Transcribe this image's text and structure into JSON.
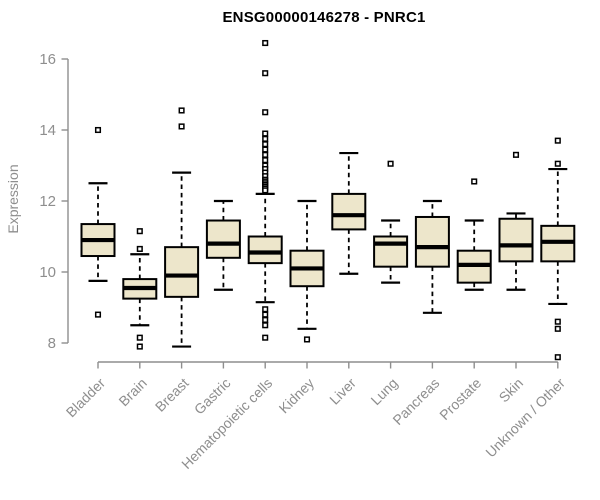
{
  "chart_data": {
    "type": "boxplot",
    "title": "ENSG00000146278 - PNRC1",
    "ylabel": "Expression",
    "xlabel": "",
    "yticks": [
      8,
      10,
      12,
      14,
      16
    ],
    "ylim": [
      7.4,
      16.6
    ],
    "grid": false,
    "legend": "none",
    "box_fill": "#EDE6CB",
    "box_stroke": "#000000",
    "median_color": "#000000",
    "whisker_color": "#000000",
    "axis_color": "#8E8E8E",
    "title_color": "#000000",
    "background": "#FFFFFF",
    "categories": [
      "Bladder",
      "Brain",
      "Breast",
      "Gastric",
      "Hematopoietic cells",
      "Kidney",
      "Liver",
      "Lung",
      "Pancreas",
      "Prostate",
      "Skin",
      "Unknown / Other"
    ],
    "boxes": [
      {
        "category": "Bladder",
        "whisker_low": 9.75,
        "q1": 10.45,
        "median": 10.9,
        "q3": 11.35,
        "whisker_high": 12.5,
        "outliers": [
          14.0,
          8.8
        ]
      },
      {
        "category": "Brain",
        "whisker_low": 8.5,
        "q1": 9.25,
        "median": 9.55,
        "q3": 9.8,
        "whisker_high": 10.5,
        "outliers": [
          11.15,
          10.65,
          8.15,
          7.9
        ]
      },
      {
        "category": "Breast",
        "whisker_low": 7.9,
        "q1": 9.3,
        "median": 9.9,
        "q3": 10.7,
        "whisker_high": 12.8,
        "outliers": [
          14.55,
          14.1
        ]
      },
      {
        "category": "Gastric",
        "whisker_low": 9.5,
        "q1": 10.4,
        "median": 10.8,
        "q3": 11.45,
        "whisker_high": 12.0,
        "outliers": []
      },
      {
        "category": "Hematopoietic cells",
        "whisker_low": 9.15,
        "q1": 10.25,
        "median": 10.55,
        "q3": 11.0,
        "whisker_high": 12.2,
        "outliers": [
          16.45,
          15.6,
          14.5,
          13.9,
          13.75,
          13.6,
          13.45,
          13.3,
          13.15,
          13.0,
          12.9,
          12.8,
          12.7,
          12.6,
          12.55,
          12.5,
          12.45,
          12.4,
          12.35,
          12.3,
          8.95,
          8.8,
          8.65,
          8.5,
          8.15
        ]
      },
      {
        "category": "Kidney",
        "whisker_low": 8.4,
        "q1": 9.6,
        "median": 10.1,
        "q3": 10.6,
        "whisker_high": 12.0,
        "outliers": [
          8.1
        ]
      },
      {
        "category": "Liver",
        "whisker_low": 9.95,
        "q1": 11.2,
        "median": 11.6,
        "q3": 12.2,
        "whisker_high": 13.35,
        "outliers": []
      },
      {
        "category": "Lung",
        "whisker_low": 9.7,
        "q1": 10.15,
        "median": 10.8,
        "q3": 11.0,
        "whisker_high": 11.45,
        "outliers": [
          13.05
        ]
      },
      {
        "category": "Pancreas",
        "whisker_low": 8.85,
        "q1": 10.15,
        "median": 10.7,
        "q3": 11.55,
        "whisker_high": 12.0,
        "outliers": []
      },
      {
        "category": "Prostate",
        "whisker_low": 9.5,
        "q1": 9.7,
        "median": 10.2,
        "q3": 10.6,
        "whisker_high": 11.45,
        "outliers": [
          12.55
        ]
      },
      {
        "category": "Skin",
        "whisker_low": 9.5,
        "q1": 10.3,
        "median": 10.75,
        "q3": 11.5,
        "whisker_high": 11.65,
        "outliers": [
          13.3
        ]
      },
      {
        "category": "Unknown / Other",
        "whisker_low": 9.1,
        "q1": 10.3,
        "median": 10.85,
        "q3": 11.3,
        "whisker_high": 12.9,
        "outliers": [
          13.7,
          13.05,
          8.6,
          8.4,
          7.6
        ]
      }
    ]
  }
}
